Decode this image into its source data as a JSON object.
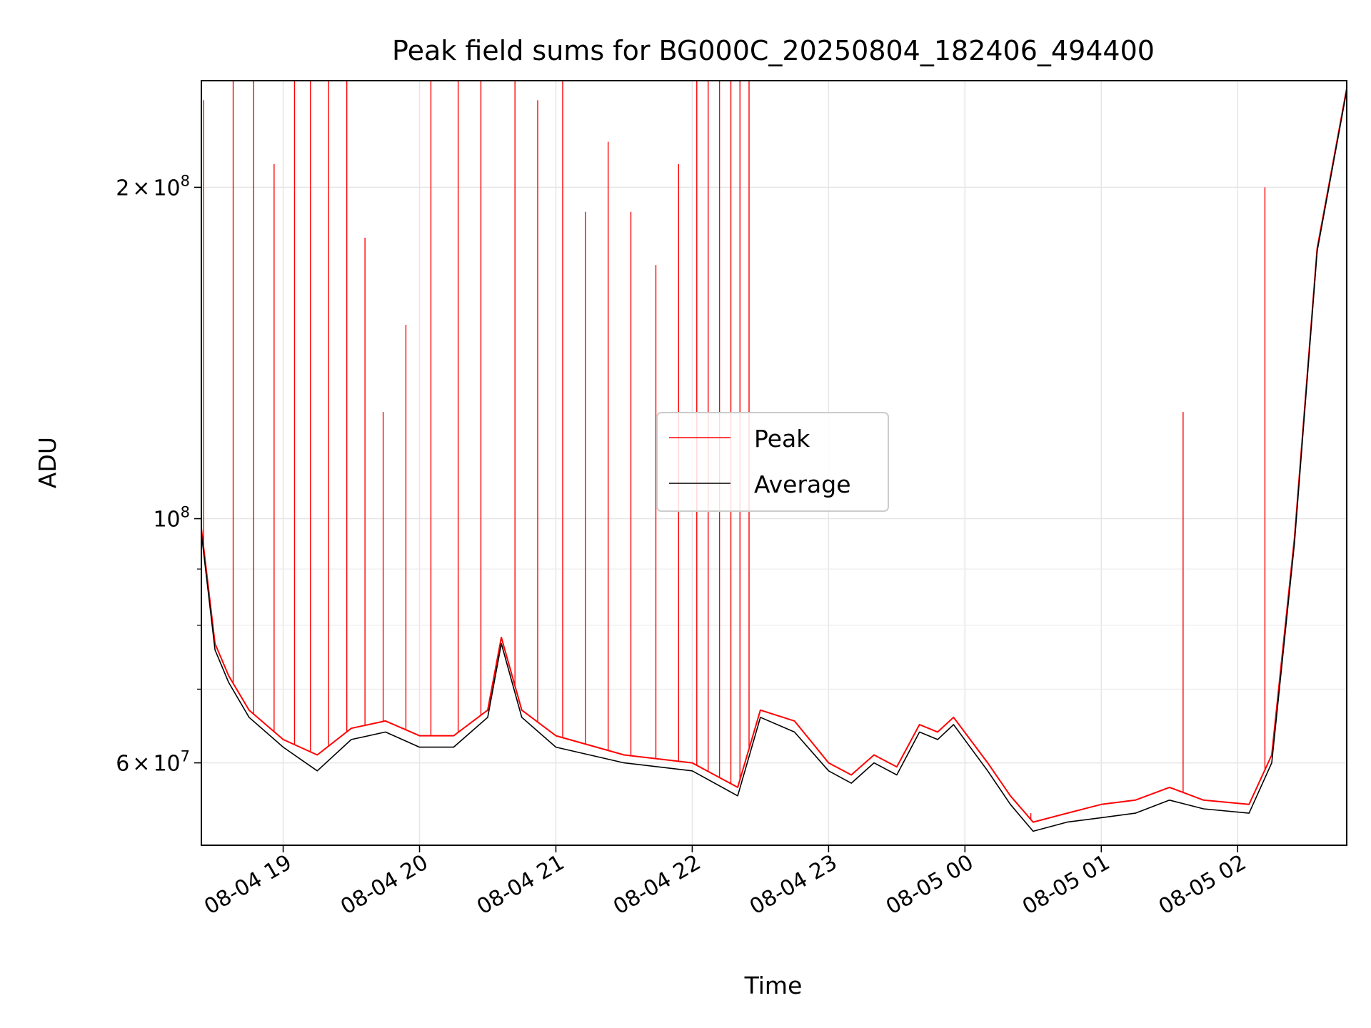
{
  "chart_data": {
    "type": "line",
    "title": "Peak field sums for BG000C_20250804_182406_494400",
    "xlabel": "Time",
    "ylabel": "ADU",
    "y_scale": "log",
    "ylim": [
      50500000,
      250000000
    ],
    "x_range": [
      "08-04 18:24",
      "08-05 02:48"
    ],
    "x_ticks": [
      "08-04 19",
      "08-04 20",
      "08-04 21",
      "08-04 22",
      "08-04 23",
      "08-05 00",
      "08-05 01",
      "08-05 02"
    ],
    "y_tick_labels": [
      {
        "value": 200000000,
        "mantissa": "2",
        "times": "×",
        "base": "10",
        "exp": "8"
      },
      {
        "value": 100000000,
        "mantissa": "",
        "times": "",
        "base": "10",
        "exp": "8"
      },
      {
        "value": 60000000,
        "mantissa": "6",
        "times": "×",
        "base": "10",
        "exp": "7"
      }
    ],
    "grid": true,
    "legend": {
      "placement": "center",
      "entries": [
        "Peak",
        "Average"
      ]
    },
    "series": [
      {
        "name": "Average",
        "color": "#000000",
        "x": [
          "08-04 18:24",
          "08-04 18:30",
          "08-04 18:36",
          "08-04 18:45",
          "08-04 19:00",
          "08-04 19:15",
          "08-04 19:30",
          "08-04 19:45",
          "08-04 20:00",
          "08-04 20:15",
          "08-04 20:30",
          "08-04 20:36",
          "08-04 20:45",
          "08-04 21:00",
          "08-04 21:30",
          "08-04 22:00",
          "08-04 22:20",
          "08-04 22:30",
          "08-04 22:45",
          "08-04 23:00",
          "08-04 23:10",
          "08-04 23:20",
          "08-04 23:30",
          "08-04 23:40",
          "08-04 23:48",
          "08-04 23:55",
          "08-05 00:10",
          "08-05 00:20",
          "08-05 00:30",
          "08-05 00:45",
          "08-05 01:00",
          "08-05 01:15",
          "08-05 01:30",
          "08-05 01:45",
          "08-05 02:05",
          "08-05 02:15",
          "08-05 02:25",
          "08-05 02:35",
          "08-05 02:48"
        ],
        "values": [
          97000000,
          76000000,
          71000000,
          66000000,
          62000000,
          59000000,
          63000000,
          64000000,
          62000000,
          62000000,
          66000000,
          77000000,
          66000000,
          62000000,
          60000000,
          59000000,
          56000000,
          66000000,
          64000000,
          59000000,
          57500000,
          60000000,
          58500000,
          64000000,
          63000000,
          65000000,
          59000000,
          55000000,
          52000000,
          53000000,
          53500000,
          54000000,
          55500000,
          54500000,
          54000000,
          60000000,
          95000000,
          175000000,
          245000000
        ]
      },
      {
        "name": "Peak",
        "color": "#ff0000",
        "x": [
          "08-04 18:24",
          "08-04 18:30",
          "08-04 18:36",
          "08-04 18:45",
          "08-04 19:00",
          "08-04 19:15",
          "08-04 19:30",
          "08-04 19:45",
          "08-04 20:00",
          "08-04 20:15",
          "08-04 20:30",
          "08-04 20:36",
          "08-04 20:45",
          "08-04 21:00",
          "08-04 21:30",
          "08-04 22:00",
          "08-04 22:20",
          "08-04 22:30",
          "08-04 22:45",
          "08-04 23:00",
          "08-04 23:10",
          "08-04 23:20",
          "08-04 23:30",
          "08-04 23:40",
          "08-04 23:48",
          "08-04 23:55",
          "08-05 00:10",
          "08-05 00:20",
          "08-05 00:30",
          "08-05 00:45",
          "08-05 01:00",
          "08-05 01:15",
          "08-05 01:30",
          "08-05 01:45",
          "08-05 02:05",
          "08-05 02:15",
          "08-05 02:25",
          "08-05 02:35",
          "08-05 02:48"
        ],
        "values": [
          98000000,
          77000000,
          72000000,
          67000000,
          63000000,
          61000000,
          64500000,
          65500000,
          63500000,
          63500000,
          67000000,
          78000000,
          67000000,
          63500000,
          61000000,
          60000000,
          57000000,
          67000000,
          65500000,
          60000000,
          58500000,
          61000000,
          59500000,
          65000000,
          64000000,
          66000000,
          60000000,
          56000000,
          53000000,
          54000000,
          55000000,
          55500000,
          57000000,
          55500000,
          55000000,
          61000000,
          96000000,
          176000000,
          246000000
        ],
        "spikes": [
          {
            "x": "08-04 18:25",
            "value": 240000000
          },
          {
            "x": "08-04 18:38",
            "value": 250000000
          },
          {
            "x": "08-04 18:47",
            "value": 250000000
          },
          {
            "x": "08-04 18:56",
            "value": 210000000
          },
          {
            "x": "08-04 19:05",
            "value": 250000000
          },
          {
            "x": "08-04 19:12",
            "value": 250000000
          },
          {
            "x": "08-04 19:20",
            "value": 250000000
          },
          {
            "x": "08-04 19:28",
            "value": 250000000
          },
          {
            "x": "08-04 19:36",
            "value": 180000000
          },
          {
            "x": "08-04 19:44",
            "value": 125000000
          },
          {
            "x": "08-04 19:54",
            "value": 150000000
          },
          {
            "x": "08-04 20:05",
            "value": 250000000
          },
          {
            "x": "08-04 20:17",
            "value": 250000000
          },
          {
            "x": "08-04 20:27",
            "value": 250000000
          },
          {
            "x": "08-04 20:42",
            "value": 250000000
          },
          {
            "x": "08-04 20:52",
            "value": 240000000
          },
          {
            "x": "08-04 21:03",
            "value": 250000000
          },
          {
            "x": "08-04 21:13",
            "value": 190000000
          },
          {
            "x": "08-04 21:23",
            "value": 220000000
          },
          {
            "x": "08-04 21:33",
            "value": 190000000
          },
          {
            "x": "08-04 21:44",
            "value": 170000000
          },
          {
            "x": "08-04 21:54",
            "value": 210000000
          },
          {
            "x": "08-04 22:02",
            "value": 250000000
          },
          {
            "x": "08-04 22:07",
            "value": 250000000
          },
          {
            "x": "08-04 22:12",
            "value": 250000000
          },
          {
            "x": "08-04 22:17",
            "value": 250000000
          },
          {
            "x": "08-04 22:21",
            "value": 250000000
          },
          {
            "x": "08-04 22:25",
            "value": 250000000
          },
          {
            "x": "08-05 00:29",
            "value": 54000000
          },
          {
            "x": "08-05 01:36",
            "value": 125000000
          },
          {
            "x": "08-05 02:12",
            "value": 200000000
          }
        ]
      }
    ]
  }
}
